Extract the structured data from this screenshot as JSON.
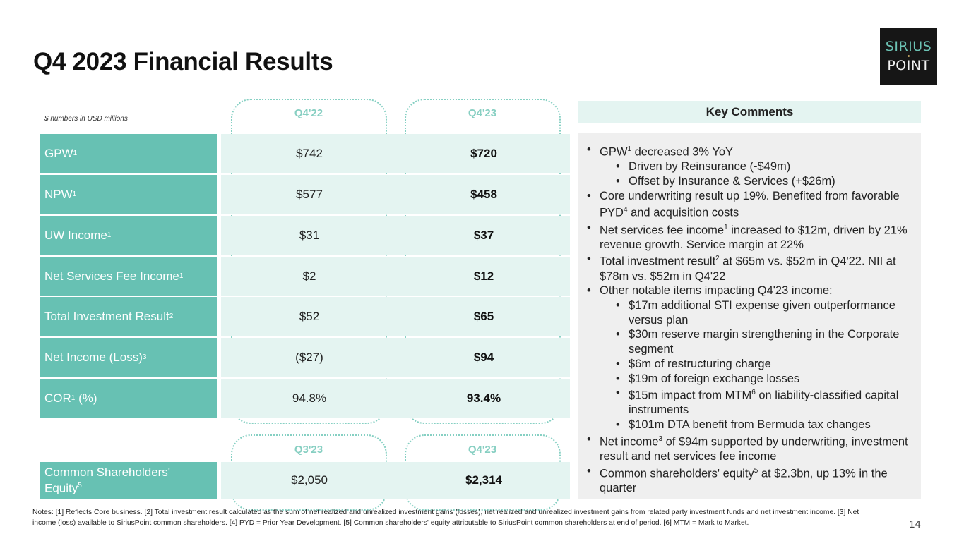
{
  "title": "Q4 2023 Financial Results",
  "logo": {
    "line1": "SIRIUS",
    "line2": "POINT"
  },
  "usd_note": "$ numbers in USD millions",
  "table": {
    "col_q1": "Q4'22",
    "col_q2": "Q4'23",
    "rows": [
      {
        "label": "GPW",
        "sup": "1",
        "q1": "$742",
        "q2": "$720"
      },
      {
        "label": "NPW",
        "sup": "1",
        "q1": "$577",
        "q2": "$458"
      },
      {
        "label": "UW Income",
        "sup": "1",
        "q1": "$31",
        "q2": "$37"
      },
      {
        "label": "Net Services Fee Income",
        "sup": "1",
        "q1": "$2",
        "q2": "$12"
      },
      {
        "label": "Total Investment Result",
        "sup": "2",
        "q1": "$52",
        "q2": "$65"
      },
      {
        "label": "Net Income (Loss)",
        "sup": "3",
        "q1": "($27)",
        "q2": "$94"
      },
      {
        "label": "COR",
        "sup": "1",
        "label_suffix": " (%)",
        "q1": "94.8%",
        "q2": "93.4%"
      }
    ]
  },
  "equity_table": {
    "col_q1": "Q3'23",
    "col_q2": "Q4'23",
    "label_line1": "Common Shareholders'",
    "label_line2": "Equity",
    "sup": "5",
    "q1": "$2,050",
    "q2": "$2,314"
  },
  "key_comments": {
    "heading": "Key Comments",
    "b1": {
      "a": "GPW",
      "s": "1",
      "b": " decreased 3% YoY"
    },
    "b1a": "Driven by Reinsurance (-$49m)",
    "b1b": "Offset by Insurance & Services (+$26m)",
    "b2": {
      "a": "Core underwriting result up 19%. Benefited from favorable PYD",
      "s": "4",
      "b": " and acquisition costs"
    },
    "b3": {
      "a": "Net services fee income",
      "s": "1",
      "b": " increased to $12m, driven by 21% revenue growth. Service margin at 22%"
    },
    "b4": {
      "a": "Total investment result",
      "s": "2",
      "b": " at $65m vs. $52m in Q4'22. NII at $78m vs. $52m in Q4'22"
    },
    "b5": "Other notable items impacting Q4'23 income:",
    "b5a": "$17m additional STI expense given outperformance versus plan",
    "b5b": "$30m reserve margin strengthening in the Corporate segment",
    "b5c": "$6m of restructuring charge",
    "b5d": "$19m of foreign exchange losses",
    "b5e": {
      "a": "$15m impact from MTM",
      "s": "6",
      "b": " on liability-classified capital instruments"
    },
    "b5f": "$101m DTA benefit from Bermuda tax changes",
    "b6": {
      "a": "Net income",
      "s": "3",
      "b": " of $94m supported by underwriting, investment result and net services fee income"
    },
    "b7": {
      "a": "Common shareholders' equity",
      "s": "5",
      "b": " at $2.3bn, up 13% in the quarter"
    }
  },
  "notes": "Notes: [1] Reflects Core business. [2] Total investment result calculated as the sum of net realized and unrealized investment gains (losses), net realized and unrealized investment gains from related party investment funds and net investment income. [3] Net income (loss) available to SiriusPoint common shareholders. [4] PYD = Prior Year Development. [5] Common shareholders' equity attributable to SiriusPoint common shareholders at end of period. [6] MTM = Mark to Market.",
  "page_number": "14"
}
